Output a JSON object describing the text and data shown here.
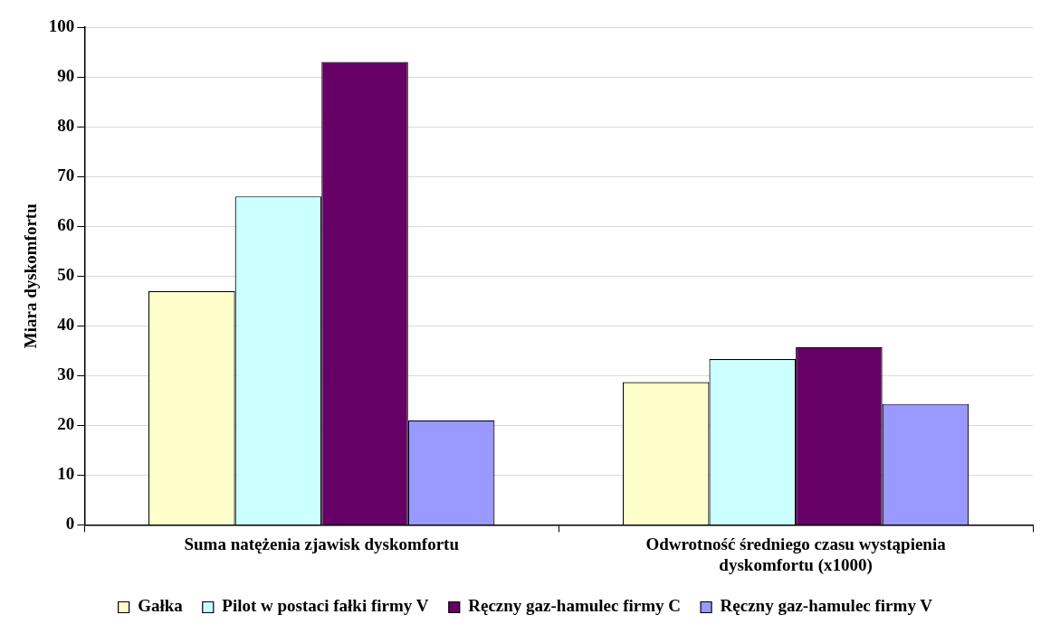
{
  "chart_data": {
    "type": "bar",
    "ylabel": "Miara dyskomfortu",
    "categories": [
      "Suma natężenia zjawisk dyskomfortu",
      "Odwrotność średniego czasu wystąpienia dyskomfortu (x1000)"
    ],
    "series": [
      {
        "name": "Gałka",
        "color": "#ffffcc",
        "values": [
          47,
          28.7
        ]
      },
      {
        "name": "Pilot w postaci fałki firmy V",
        "color": "#ccffff",
        "values": [
          66,
          33.3
        ]
      },
      {
        "name": "Ręczny gaz-hamulec firmy C",
        "color": "#660066",
        "values": [
          93,
          35.7
        ]
      },
      {
        "name": "Ręczny gaz-hamulec firmy V",
        "color": "#9999ff",
        "values": [
          21,
          24.3
        ]
      }
    ],
    "ylim": [
      0,
      100
    ],
    "yticks": [
      0,
      10,
      20,
      30,
      40,
      50,
      60,
      70,
      80,
      90,
      100
    ],
    "grid": "y",
    "legend": "bottom"
  }
}
